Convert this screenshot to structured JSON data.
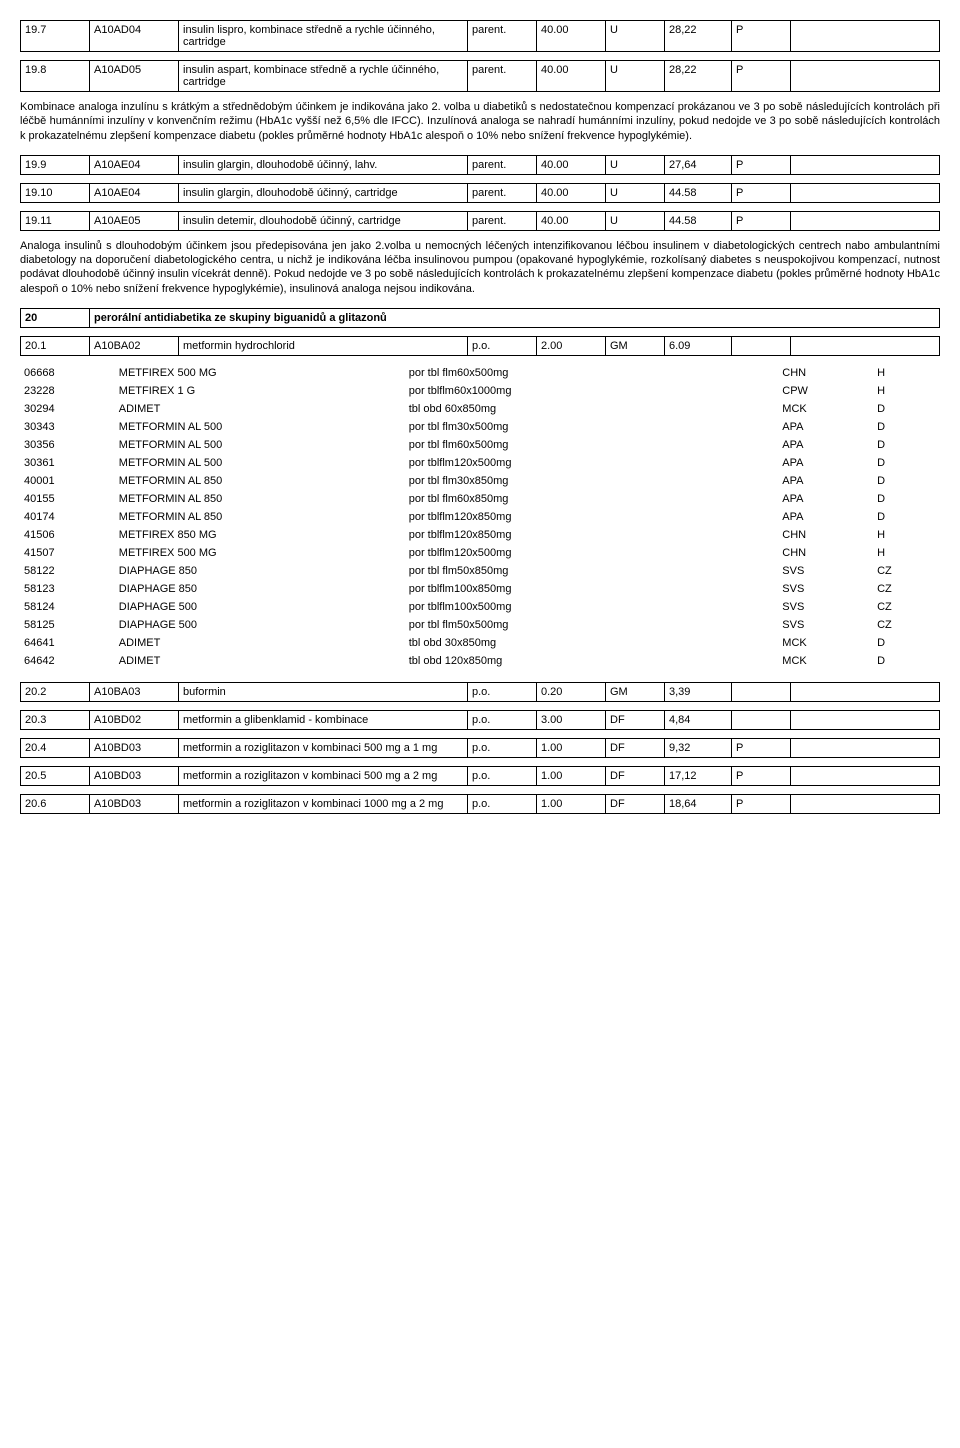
{
  "rows197": {
    "n": "19.7",
    "code": "A10AD04",
    "name": "insulin lispro, kombinace středně a rychle účinného, cartridge",
    "route": "parent.",
    "dose": "40.00",
    "unit": "U",
    "val": "28,22",
    "flag": "P"
  },
  "rows198": {
    "n": "19.8",
    "code": "A10AD05",
    "name": "insulin aspart, kombinace středně a rychle účinného, cartridge",
    "route": "parent.",
    "dose": "40.00",
    "unit": "U",
    "val": "28,22",
    "flag": "P"
  },
  "para1": "Kombinace analoga inzulínu s krátkým a střednědobým účinkem je indikována jako 2. volba u diabetiků s nedostatečnou kompenzací prokázanou ve 3 po sobě následujících kontrolách při léčbě humánními inzulíny v konvenčním režimu (HbA1c vyšší než 6,5% dle IFCC). Inzulínová analoga se nahradí humánními inzulíny, pokud nedojde ve 3 po sobě následujících kontrolách k prokazatelnému zlepšení kompenzace diabetu (pokles průměrné hodnoty HbA1c alespoň o 10% nebo snížení frekvence hypoglykémie).",
  "rows199": {
    "n": "19.9",
    "code": "A10AE04",
    "name": "insulin glargin, dlouhodobě účinný, lahv.",
    "route": "parent.",
    "dose": "40.00",
    "unit": "U",
    "val": "27,64",
    "flag": "P"
  },
  "rows1910": {
    "n": "19.10",
    "code": "A10AE04",
    "name": "insulin glargin, dlouhodobě účinný, cartridge",
    "route": "parent.",
    "dose": "40.00",
    "unit": "U",
    "val": "44.58",
    "flag": "P"
  },
  "rows1911": {
    "n": "19.11",
    "code": "A10AE05",
    "name": "insulin detemir, dlouhodobě účinný, cartridge",
    "route": "parent.",
    "dose": "40.00",
    "unit": "U",
    "val": "44.58",
    "flag": "P"
  },
  "para2": "Analoga insulinů s dlouhodobým účinkem jsou předepisována jen jako 2.volba u nemocných léčených intenzifikovanou léčbou insulinem v diabetologických centrech nabo ambulantními diabetology na doporučení diabetologického centra, u nichž je indikována léčba insulinovou pumpou (opakované hypoglykémie, rozkolísaný diabetes s neuspokojivou kompenzací, nutnost podávat dlouhodobě účinný insulin vícekrát denně). Pokud nedojde ve 3 po sobě následujících kontrolách k prokazatelnému zlepšení kompenzace diabetu (pokles průměrné hodnoty HbA1c alespoň o 10% nebo snížení frekvence hypoglykémie), insulinová analoga nejsou indikována.",
  "section20": {
    "n": "20",
    "title": "perorální antidiabetika ze skupiny biguanidů a glitazonů"
  },
  "rows201": {
    "n": "20.1",
    "code": "A10BA02",
    "name": "metformin hydrochlorid",
    "route": "p.o.",
    "dose": "2.00",
    "unit": "GM",
    "val": "6.09",
    "flag": ""
  },
  "products": [
    {
      "id": "06668",
      "name": "METFIREX 500 MG",
      "form": "por tbl flm60x500mg",
      "mf": "CHN",
      "c": "H"
    },
    {
      "id": "23228",
      "name": "METFIREX 1 G",
      "form": "por tblflm60x1000mg",
      "mf": "CPW",
      "c": "H"
    },
    {
      "id": "30294",
      "name": "ADIMET",
      "form": "tbl obd 60x850mg",
      "mf": "MCK",
      "c": "D"
    },
    {
      "id": "30343",
      "name": "METFORMIN AL 500",
      "form": "por tbl flm30x500mg",
      "mf": "APA",
      "c": "D"
    },
    {
      "id": "30356",
      "name": "METFORMIN AL 500",
      "form": "por tbl flm60x500mg",
      "mf": "APA",
      "c": "D"
    },
    {
      "id": "30361",
      "name": "METFORMIN AL 500",
      "form": "por tblflm120x500mg",
      "mf": "APA",
      "c": "D"
    },
    {
      "id": "40001",
      "name": "METFORMIN AL 850",
      "form": "por tbl flm30x850mg",
      "mf": "APA",
      "c": "D"
    },
    {
      "id": "40155",
      "name": "METFORMIN AL 850",
      "form": "por tbl flm60x850mg",
      "mf": "APA",
      "c": "D"
    },
    {
      "id": "40174",
      "name": "METFORMIN AL 850",
      "form": "por tblflm120x850mg",
      "mf": "APA",
      "c": "D"
    },
    {
      "id": "41506",
      "name": "METFIREX 850 MG",
      "form": "por tblflm120x850mg",
      "mf": "CHN",
      "c": "H"
    },
    {
      "id": "41507",
      "name": "METFIREX 500 MG",
      "form": "por tblflm120x500mg",
      "mf": "CHN",
      "c": "H"
    },
    {
      "id": "58122",
      "name": "DIAPHAGE 850",
      "form": "por tbl flm50x850mg",
      "mf": "SVS",
      "c": "CZ"
    },
    {
      "id": "58123",
      "name": "DIAPHAGE 850",
      "form": "por tblflm100x850mg",
      "mf": "SVS",
      "c": "CZ"
    },
    {
      "id": "58124",
      "name": "DIAPHAGE 500",
      "form": "por tblflm100x500mg",
      "mf": "SVS",
      "c": "CZ"
    },
    {
      "id": "58125",
      "name": "DIAPHAGE 500",
      "form": "por tbl flm50x500mg",
      "mf": "SVS",
      "c": "CZ"
    },
    {
      "id": "64641",
      "name": "ADIMET",
      "form": "tbl obd 30x850mg",
      "mf": "MCK",
      "c": "D"
    },
    {
      "id": "64642",
      "name": "ADIMET",
      "form": "tbl obd 120x850mg",
      "mf": "MCK",
      "c": "D"
    }
  ],
  "rows202": {
    "n": "20.2",
    "code": "A10BA03",
    "name": "buformin",
    "route": "p.o.",
    "dose": "0.20",
    "unit": "GM",
    "val": "3,39",
    "flag": ""
  },
  "rows203": {
    "n": "20.3",
    "code": "A10BD02",
    "name": "metformin a glibenklamid - kombinace",
    "route": "p.o.",
    "dose": "3.00",
    "unit": "DF",
    "val": "4,84",
    "flag": ""
  },
  "rows204": {
    "n": "20.4",
    "code": "A10BD03",
    "name": "metformin a roziglitazon v kombinaci 500 mg a 1 mg",
    "route": "p.o.",
    "dose": "1.00",
    "unit": "DF",
    "val": "9,32",
    "flag": "P"
  },
  "rows205": {
    "n": "20.5",
    "code": "A10BD03",
    "name": "metformin a roziglitazon v kombinaci 500 mg a 2 mg",
    "route": "p.o.",
    "dose": "1.00",
    "unit": "DF",
    "val": "17,12",
    "flag": "P"
  },
  "rows206": {
    "n": "20.6",
    "code": "A10BD03",
    "name": "metformin a roziglitazon v kombinaci 1000 mg a 2 mg",
    "route": "p.o.",
    "dose": "1.00",
    "unit": "DF",
    "val": "18,64",
    "flag": "P"
  }
}
